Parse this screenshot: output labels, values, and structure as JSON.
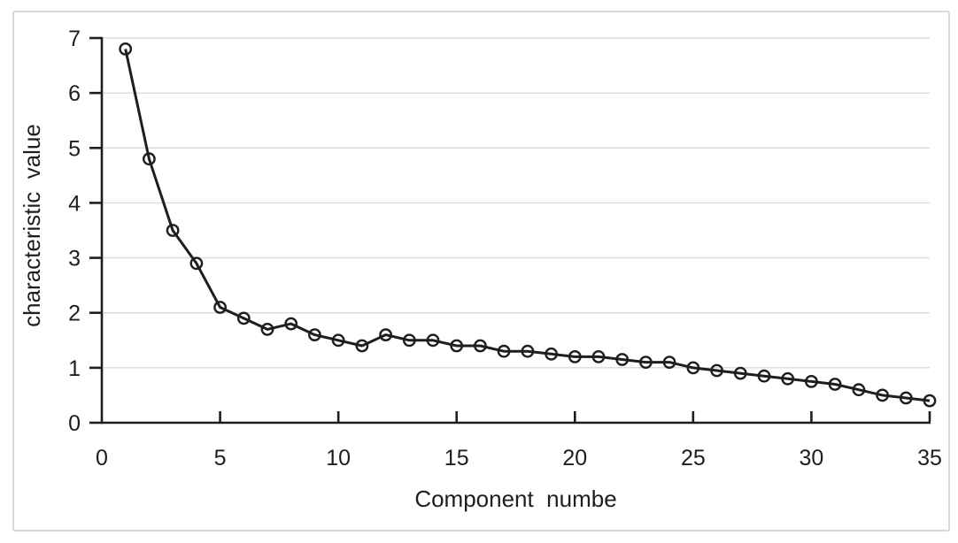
{
  "figure": {
    "background": "#ffffff",
    "border_color": "#d8d8d8"
  },
  "chart_data": {
    "type": "line",
    "title": "",
    "xlabel": "Component  numbe",
    "ylabel": "characteristic  value",
    "x": [
      1,
      2,
      3,
      4,
      5,
      6,
      7,
      8,
      9,
      10,
      11,
      12,
      13,
      14,
      15,
      16,
      17,
      18,
      19,
      20,
      21,
      22,
      23,
      24,
      25,
      26,
      27,
      28,
      29,
      30,
      31,
      32,
      33,
      34,
      35
    ],
    "series": [
      {
        "name": "characteristic value",
        "values": [
          6.8,
          4.8,
          3.5,
          2.9,
          2.1,
          1.9,
          1.7,
          1.8,
          1.6,
          1.5,
          1.4,
          1.6,
          1.5,
          1.5,
          1.4,
          1.4,
          1.3,
          1.3,
          1.25,
          1.2,
          1.2,
          1.15,
          1.1,
          1.1,
          1.0,
          0.95,
          0.9,
          0.85,
          0.8,
          0.75,
          0.7,
          0.6,
          0.5,
          0.45,
          0.4
        ]
      }
    ],
    "xlim": [
      0,
      35
    ],
    "ylim": [
      0,
      7
    ],
    "x_ticks": [
      0,
      5,
      10,
      15,
      20,
      25,
      30,
      35
    ],
    "y_ticks": [
      0,
      1,
      2,
      3,
      4,
      5,
      6,
      7
    ],
    "grid": "horizontal",
    "legend": "none",
    "marker": "open-circle",
    "colors": {
      "line": "#1e1e1e",
      "marker_stroke": "#1e1e1e",
      "grid": "#dadada",
      "axis": "#1e1e1e",
      "text": "#1e1e1e"
    }
  }
}
